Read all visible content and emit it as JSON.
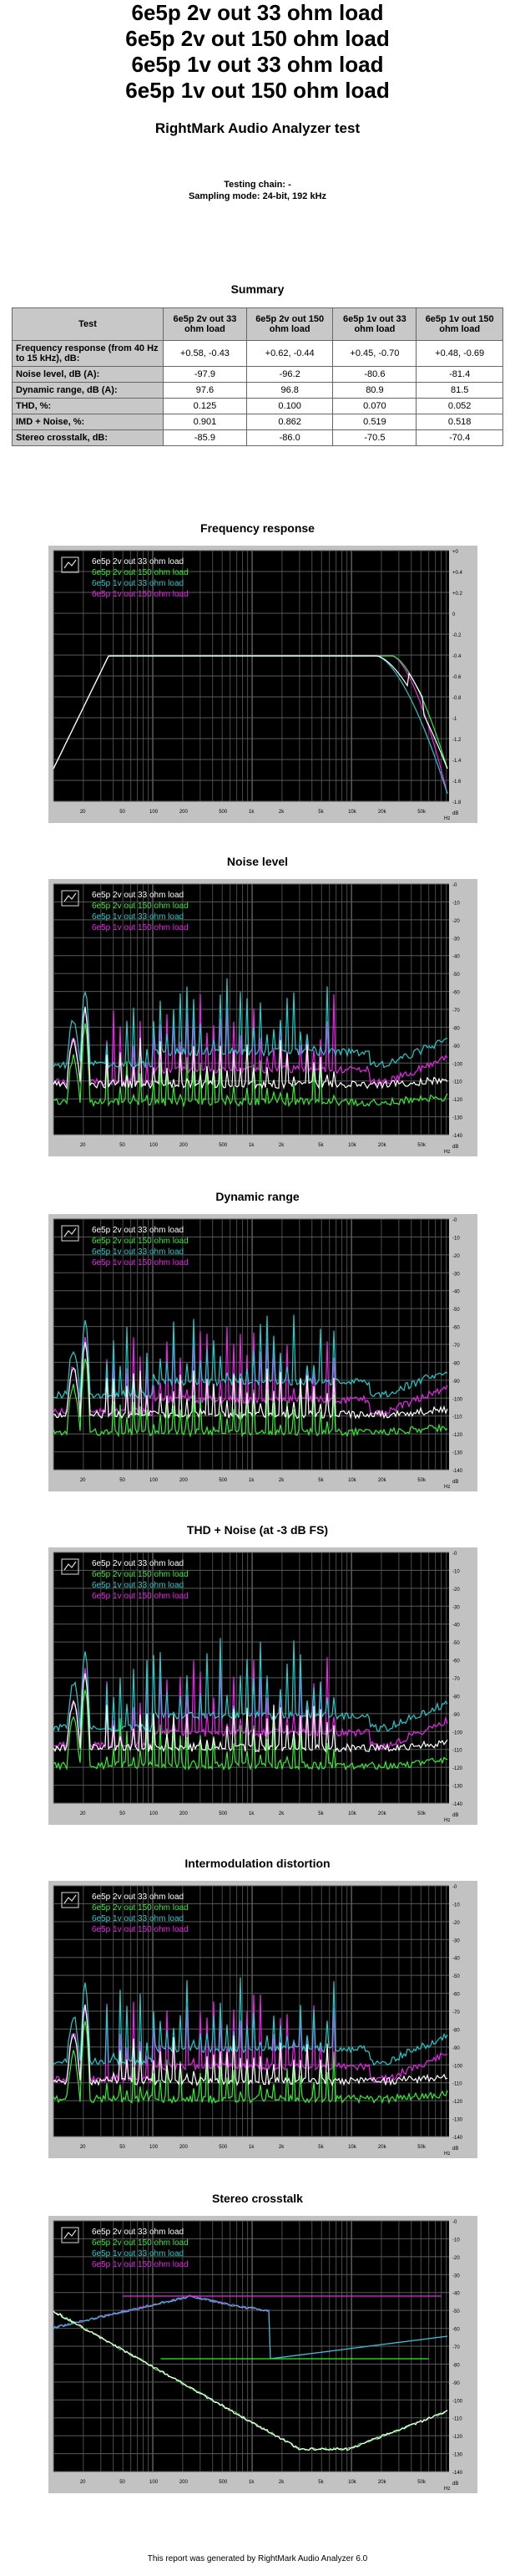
{
  "header": {
    "titles": [
      "6e5p 2v out 33 ohm load",
      "6e5p 2v out 150 ohm load",
      "6e5p 1v out 33 ohm load",
      "6e5p 1v out 150 ohm load"
    ],
    "subtitle": "RightMark Audio Analyzer test",
    "testing_chain": "Testing chain: -",
    "sampling_mode": "Sampling mode: 24-bit, 192 kHz"
  },
  "summary": {
    "title": "Summary",
    "columns": [
      "Test",
      "6e5p 2v out 33 ohm load",
      "6e5p 2v out 150 ohm load",
      "6e5p 1v out 33 ohm load",
      "6e5p 1v out 150 ohm load"
    ],
    "rows": [
      {
        "label": "Frequency response (from 40 Hz to 15 kHz), dB:",
        "values": [
          "+0.58, -0.43",
          "+0.62, -0.44",
          "+0.45, -0.70",
          "+0.48, -0.69"
        ]
      },
      {
        "label": "Noise level, dB (A):",
        "values": [
          "-97.9",
          "-96.2",
          "-80.6",
          "-81.4"
        ]
      },
      {
        "label": "Dynamic range, dB (A):",
        "values": [
          "97.6",
          "96.8",
          "80.9",
          "81.5"
        ]
      },
      {
        "label": "THD, %:",
        "values": [
          "0.125",
          "0.100",
          "0.070",
          "0.052"
        ]
      },
      {
        "label": "IMD + Noise, %:",
        "values": [
          "0.901",
          "0.862",
          "0.519",
          "0.518"
        ]
      },
      {
        "label": "Stereo crosstalk, dB:",
        "values": [
          "-85.9",
          "-86.0",
          "-70.5",
          "-70.4"
        ]
      }
    ]
  },
  "legend": {
    "labels": [
      "6e5p 2v out 33 ohm load",
      "6e5p 2v out 150 ohm load",
      "6e5p 1v out 33 ohm load",
      "6e5p 1v out 150 ohm load"
    ],
    "colors": [
      "#ffffff",
      "#33ee33",
      "#22cccc",
      "#ee22ee"
    ]
  },
  "graphs": {
    "titles": [
      "Frequency response",
      "Noise level",
      "Dynamic range",
      "THD + Noise (at -3 dB FS)",
      "Intermodulation distortion",
      "Stereo crosstalk"
    ],
    "x_ticks": [
      "20",
      "50",
      "100",
      "200",
      "500",
      "1k",
      "2k",
      "5k",
      "10k",
      "20k",
      "50k",
      "Hz"
    ],
    "y_ticks_response": [
      "+0",
      "+0.4",
      "+0.2",
      "0",
      "-0.2",
      "-0.4",
      "-0.6",
      "-0.8",
      "-1",
      "-1.2",
      "-1.4",
      "-1.6",
      "-1.8",
      "dB"
    ],
    "y_ticks_spectrum": [
      "-0",
      "-10",
      "-20",
      "-30",
      "-40",
      "-50",
      "-60",
      "-70",
      "-80",
      "-90",
      "-100",
      "-110",
      "-120",
      "-130",
      "-140",
      "dB"
    ]
  },
  "footer": "This report was generated by RightMark Audio Analyzer 6.0"
}
